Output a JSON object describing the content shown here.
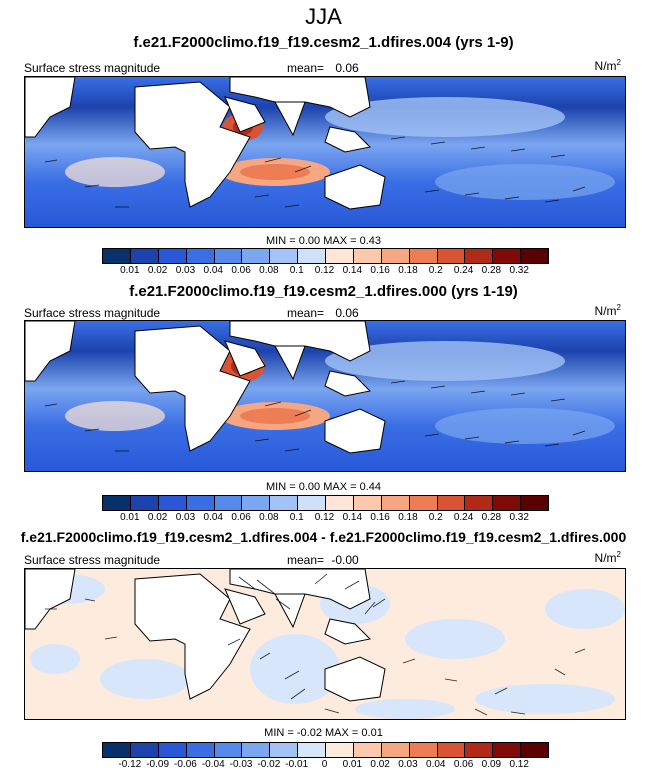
{
  "figure": {
    "season": "JJA"
  },
  "panels": [
    {
      "title": "f.e21.F2000climo.f19_f19.cesm2_1.dfires.004 (yrs 1-9)",
      "variable": "Surface stress magnitude",
      "mean_label": "mean=",
      "mean_value": "0.06",
      "units_base": "N/m",
      "units_exp": "2",
      "min_label": "MIN =",
      "min_value": "0.00",
      "max_label": "MAX =",
      "max_value": "0.43",
      "colorbar_ticks": [
        "0.01",
        "0.02",
        "0.03",
        "0.04",
        "0.06",
        "0.08",
        "0.1",
        "0.12",
        "0.14",
        "0.16",
        "0.18",
        "0.2",
        "0.24",
        "0.28",
        "0.32"
      ],
      "colors": [
        "#08306b",
        "#1c43ad",
        "#2858d8",
        "#3a6ee5",
        "#5589ea",
        "#7ba6f0",
        "#a3c3f6",
        "#cfe0fa",
        "#fde6d6",
        "#fcc9ac",
        "#f6a680",
        "#ec7d55",
        "#d95434",
        "#b02a17",
        "#7f0a06",
        "#5a0000"
      ],
      "stats": "full"
    },
    {
      "title": "f.e21.F2000climo.f19_f19.cesm2_1.dfires.000 (yrs 1-19)",
      "variable": "Surface stress magnitude",
      "mean_label": "mean=",
      "mean_value": "0.06",
      "units_base": "N/m",
      "units_exp": "2",
      "min_label": "MIN =",
      "min_value": "0.00",
      "max_label": "MAX =",
      "max_value": "0.44",
      "colorbar_ticks": [
        "0.01",
        "0.02",
        "0.03",
        "0.04",
        "0.06",
        "0.08",
        "0.1",
        "0.12",
        "0.14",
        "0.16",
        "0.18",
        "0.2",
        "0.24",
        "0.28",
        "0.32"
      ],
      "colors": [
        "#08306b",
        "#1c43ad",
        "#2858d8",
        "#3a6ee5",
        "#5589ea",
        "#7ba6f0",
        "#a3c3f6",
        "#cfe0fa",
        "#fde6d6",
        "#fcc9ac",
        "#f6a680",
        "#ec7d55",
        "#d95434",
        "#b02a17",
        "#7f0a06",
        "#5a0000"
      ],
      "stats": "full"
    },
    {
      "title": "f.e21.F2000climo.f19_f19.cesm2_1.dfires.004 - f.e21.F2000climo.f19_f19.cesm2_1.dfires.000",
      "variable": "Surface stress magnitude",
      "mean_label": "mean=",
      "mean_value": "-0.00",
      "units_base": "N/m",
      "units_exp": "2",
      "min_label": "MIN =",
      "min_value": "-0.02",
      "max_label": "MAX =",
      "max_value": "0.01",
      "colorbar_ticks": [
        "-0.12",
        "-0.09",
        "-0.06",
        "-0.04",
        "-0.03",
        "-0.02",
        "-0.01",
        "0",
        "0.01",
        "0.02",
        "0.03",
        "0.04",
        "0.06",
        "0.09",
        "0.12"
      ],
      "colors": [
        "#08306b",
        "#1c43ad",
        "#2858d8",
        "#3a6ee5",
        "#5589ea",
        "#7ba6f0",
        "#a3c3f6",
        "#d7e6fb",
        "#fdebdd",
        "#fcc9ac",
        "#f6a680",
        "#ec7d55",
        "#d95434",
        "#b02a17",
        "#7f0a06",
        "#5a0000"
      ],
      "stats": "diff"
    }
  ]
}
